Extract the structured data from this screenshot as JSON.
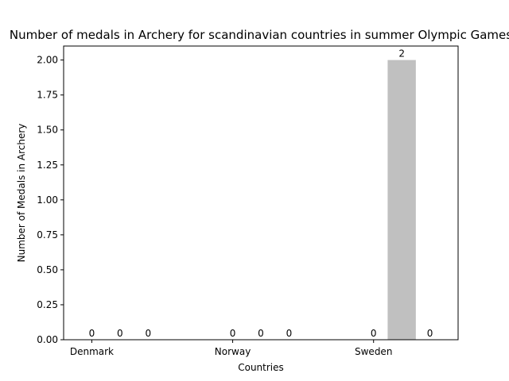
{
  "chart_data": {
    "type": "bar",
    "title": "Number of medals in Archery for scandinavian countries in summer Olympic Games",
    "xlabel": "Countries",
    "ylabel": "Number of Medals in Archery",
    "categories": [
      "Denmark",
      "Norway",
      "Sweden"
    ],
    "series": [
      {
        "values": [
          0,
          0,
          0
        ],
        "color": "#ffd700"
      },
      {
        "values": [
          0,
          0,
          2
        ],
        "color": "#c0c0c0"
      },
      {
        "values": [
          0,
          0,
          0
        ],
        "color": "#cd7f32"
      }
    ],
    "ylim": [
      0,
      2.1
    ],
    "yticks": [
      0.0,
      0.25,
      0.5,
      0.75,
      1.0,
      1.25,
      1.5,
      1.75,
      2.0
    ],
    "ytick_labels": [
      "0.00",
      "0.25",
      "0.50",
      "0.75",
      "1.00",
      "1.25",
      "1.50",
      "1.75",
      "2.00"
    ],
    "data_label_values": [
      [
        "0",
        "0",
        "0"
      ],
      [
        "0",
        "0",
        "2"
      ],
      [
        "0",
        "0",
        "0"
      ]
    ],
    "grid": false,
    "legend": "none"
  }
}
